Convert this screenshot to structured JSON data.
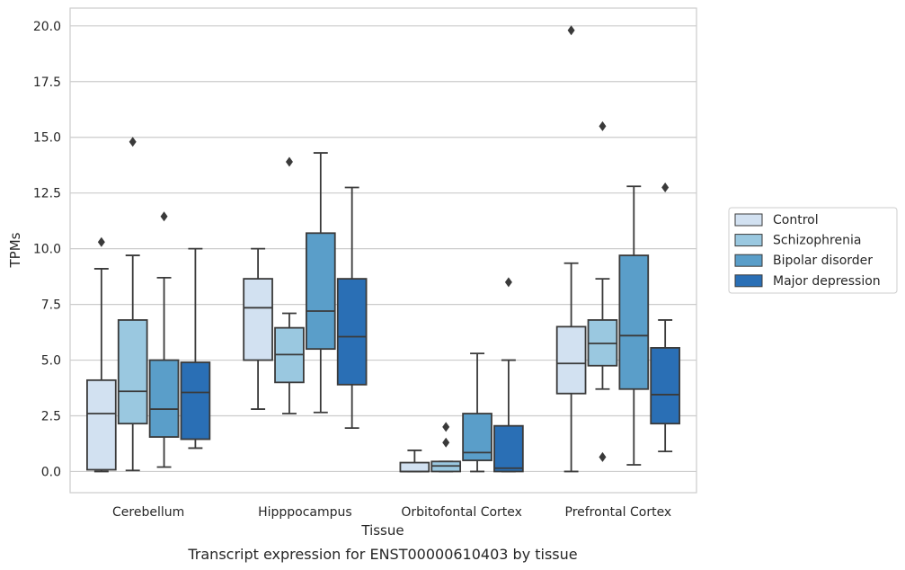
{
  "chart_data": {
    "type": "boxplot",
    "title": "Transcript expression for ENST00000610403 by tissue",
    "xlabel": "Tissue",
    "ylabel": "TPMs",
    "ylim": [
      -0.95,
      20.8
    ],
    "yticks": [
      "0.0",
      "2.5",
      "5.0",
      "7.5",
      "10.0",
      "12.5",
      "15.0",
      "17.5",
      "20.0"
    ],
    "grid": true,
    "legend_position": "right",
    "categories": [
      "Cerebellum",
      "Hipppocampus",
      "Orbitofontal Cortex",
      "Prefrontal Cortex"
    ],
    "series": [
      {
        "name": "Control",
        "color": "#d2e1f1",
        "boxes": [
          {
            "whislo": 0.0,
            "q1": 0.08,
            "med": 2.6,
            "q3": 4.1,
            "whishi": 9.1,
            "fliers": [
              10.3
            ]
          },
          {
            "whislo": 2.8,
            "q1": 5.0,
            "med": 7.35,
            "q3": 8.65,
            "whishi": 10.0,
            "fliers": []
          },
          {
            "whislo": 0.0,
            "q1": 0.0,
            "med": 0.0,
            "q3": 0.4,
            "whishi": 0.95,
            "fliers": []
          },
          {
            "whislo": 0.0,
            "q1": 3.5,
            "med": 4.85,
            "q3": 6.5,
            "whishi": 9.35,
            "fliers": [
              19.8
            ]
          }
        ]
      },
      {
        "name": "Schizophrenia",
        "color": "#9ac8e0",
        "boxes": [
          {
            "whislo": 0.05,
            "q1": 2.15,
            "med": 3.6,
            "q3": 6.8,
            "whishi": 9.7,
            "fliers": [
              14.8
            ]
          },
          {
            "whislo": 2.6,
            "q1": 4.0,
            "med": 5.25,
            "q3": 6.45,
            "whishi": 7.1,
            "fliers": [
              13.9
            ]
          },
          {
            "whislo": 0.0,
            "q1": 0.0,
            "med": 0.25,
            "q3": 0.45,
            "whishi": 0.45,
            "fliers": [
              1.3,
              2.0
            ]
          },
          {
            "whislo": 3.7,
            "q1": 4.75,
            "med": 5.75,
            "q3": 6.8,
            "whishi": 8.65,
            "fliers": [
              0.65,
              15.5
            ]
          }
        ]
      },
      {
        "name": "Bipolar disorder",
        "color": "#5a9ec9",
        "boxes": [
          {
            "whislo": 0.2,
            "q1": 1.55,
            "med": 2.8,
            "q3": 5.0,
            "whishi": 8.7,
            "fliers": [
              11.45
            ]
          },
          {
            "whislo": 2.65,
            "q1": 5.5,
            "med": 7.2,
            "q3": 10.7,
            "whishi": 14.3,
            "fliers": []
          },
          {
            "whislo": 0.0,
            "q1": 0.5,
            "med": 0.85,
            "q3": 2.6,
            "whishi": 5.3,
            "fliers": []
          },
          {
            "whislo": 0.3,
            "q1": 3.7,
            "med": 6.1,
            "q3": 9.7,
            "whishi": 12.8,
            "fliers": []
          }
        ]
      },
      {
        "name": "Major depression",
        "color": "#2a6fb5",
        "boxes": [
          {
            "whislo": 1.05,
            "q1": 1.45,
            "med": 3.55,
            "q3": 4.9,
            "whishi": 10.0,
            "fliers": []
          },
          {
            "whislo": 1.95,
            "q1": 3.9,
            "med": 6.05,
            "q3": 8.65,
            "whishi": 12.75,
            "fliers": []
          },
          {
            "whislo": 0.0,
            "q1": 0.0,
            "med": 0.15,
            "q3": 2.05,
            "whishi": 5.0,
            "fliers": [
              8.5
            ]
          },
          {
            "whislo": 0.9,
            "q1": 2.15,
            "med": 3.45,
            "q3": 5.55,
            "whishi": 6.8,
            "fliers": [
              12.75
            ]
          }
        ]
      }
    ]
  },
  "colors": {
    "grid": "#cccccc",
    "axes_frame": "#cccccc",
    "box_edge": "#3a3a3a",
    "text": "#262626"
  }
}
